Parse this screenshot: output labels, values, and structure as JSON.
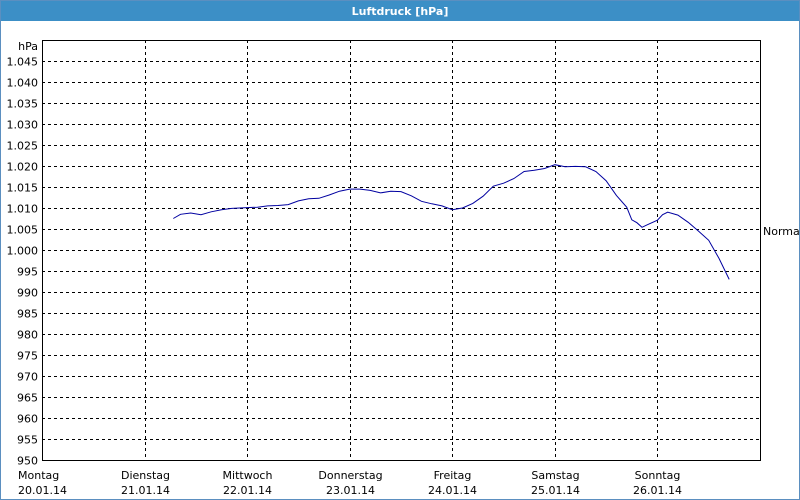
{
  "window": {
    "title": "Luftdruck [hPa]"
  },
  "chart_data": {
    "type": "line",
    "title": "Luftdruck [hPa]",
    "ylabel": "hPa",
    "ylim": [
      950,
      1050
    ],
    "yticks": [
      950,
      955,
      960,
      965,
      970,
      975,
      980,
      985,
      990,
      995,
      1000,
      1005,
      1010,
      1015,
      1020,
      1025,
      1030,
      1035,
      1040,
      1045
    ],
    "ytick_labels": [
      "950",
      "955",
      "960",
      "965",
      "970",
      "975",
      "980",
      "985",
      "990",
      "995",
      "1.000",
      "1.005",
      "1.010",
      "1.015",
      "1.020",
      "1.025",
      "1.030",
      "1.035",
      "1.040",
      "1.045"
    ],
    "xlim": [
      0,
      7
    ],
    "x_categories": [
      {
        "day": "Montag",
        "date": "20.01.14"
      },
      {
        "day": "Dienstag",
        "date": "21.01.14"
      },
      {
        "day": "Mittwoch",
        "date": "22.01.14"
      },
      {
        "day": "Donnerstag",
        "date": "23.01.14"
      },
      {
        "day": "Freitag",
        "date": "24.01.14"
      },
      {
        "day": "Samstag",
        "date": "25.01.14"
      },
      {
        "day": "Sonntag",
        "date": "26.01.14"
      }
    ],
    "grid": true,
    "reference_line": {
      "label": "Normal",
      "value": 1004.5
    },
    "series": [
      {
        "color": "#0000a0",
        "points": [
          [
            1.28,
            1007.5
          ],
          [
            1.35,
            1008.5
          ],
          [
            1.45,
            1008.8
          ],
          [
            1.55,
            1008.4
          ],
          [
            1.65,
            1009.1
          ],
          [
            1.75,
            1009.6
          ],
          [
            1.85,
            1009.9
          ],
          [
            2.0,
            1010.1
          ],
          [
            2.1,
            1010.2
          ],
          [
            2.2,
            1010.5
          ],
          [
            2.3,
            1010.6
          ],
          [
            2.4,
            1010.8
          ],
          [
            2.5,
            1011.7
          ],
          [
            2.6,
            1012.2
          ],
          [
            2.7,
            1012.3
          ],
          [
            2.8,
            1013.1
          ],
          [
            2.9,
            1014.0
          ],
          [
            3.0,
            1014.5
          ],
          [
            3.1,
            1014.5
          ],
          [
            3.2,
            1014.2
          ],
          [
            3.3,
            1013.6
          ],
          [
            3.4,
            1014.0
          ],
          [
            3.5,
            1013.9
          ],
          [
            3.6,
            1012.9
          ],
          [
            3.7,
            1011.6
          ],
          [
            3.8,
            1011.0
          ],
          [
            3.9,
            1010.5
          ],
          [
            4.0,
            1009.6
          ],
          [
            4.1,
            1010.0
          ],
          [
            4.2,
            1011.1
          ],
          [
            4.3,
            1012.8
          ],
          [
            4.4,
            1015.2
          ],
          [
            4.5,
            1015.9
          ],
          [
            4.6,
            1017.0
          ],
          [
            4.7,
            1018.7
          ],
          [
            4.8,
            1019.0
          ],
          [
            4.9,
            1019.4
          ],
          [
            5.0,
            1020.3
          ],
          [
            5.1,
            1019.8
          ],
          [
            5.2,
            1019.9
          ],
          [
            5.3,
            1019.8
          ],
          [
            5.4,
            1018.7
          ],
          [
            5.5,
            1016.5
          ],
          [
            5.6,
            1013.0
          ],
          [
            5.7,
            1010.2
          ],
          [
            5.75,
            1007.2
          ],
          [
            5.8,
            1006.5
          ],
          [
            5.85,
            1005.4
          ],
          [
            5.9,
            1006.0
          ],
          [
            6.0,
            1007.1
          ],
          [
            6.05,
            1008.4
          ],
          [
            6.1,
            1009.0
          ],
          [
            6.2,
            1008.3
          ],
          [
            6.3,
            1006.6
          ],
          [
            6.4,
            1004.5
          ],
          [
            6.5,
            1002.3
          ],
          [
            6.6,
            998.0
          ],
          [
            6.7,
            993.0
          ]
        ]
      }
    ]
  }
}
